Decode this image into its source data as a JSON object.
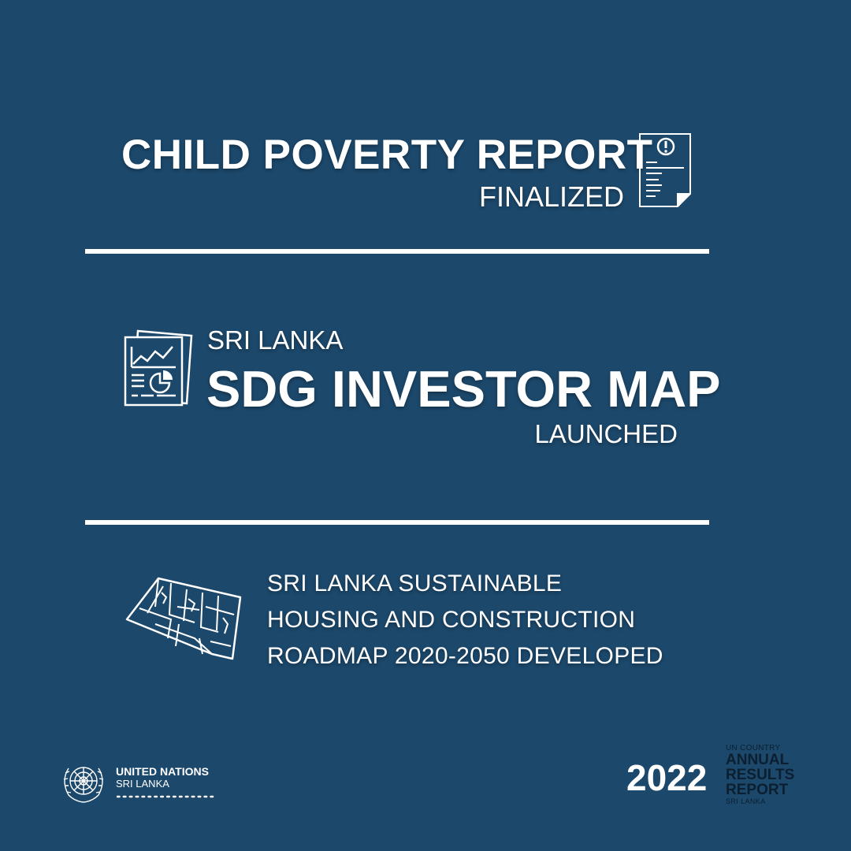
{
  "section1": {
    "title": "CHILD POVERTY REPORT",
    "status": "FINALIZED",
    "icon": "report-document-alert-icon"
  },
  "section2": {
    "pretitle": "SRI LANKA",
    "title": "SDG INVESTOR MAP",
    "status": "LAUNCHED",
    "icon": "analytics-documents-icon"
  },
  "section3": {
    "lines": [
      "SRI LANKA SUSTAINABLE",
      "HOUSING AND CONSTRUCTION",
      "ROADMAP 2020-2050 DEVELOPED"
    ],
    "icon": "city-map-icon"
  },
  "footer": {
    "org_name": "UNITED NATIONS",
    "org_country": "SRI LANKA",
    "emblem_icon": "un-emblem-icon",
    "year": "2022",
    "report_super": "UN COUNTRY",
    "report_lines": [
      "ANNUAL",
      "RESULTS",
      "REPORT"
    ],
    "report_sub": "SRI LANKA"
  },
  "colors": {
    "background": "#1c486b",
    "foreground": "#ffffff",
    "report_label": "#0b1f30"
  }
}
